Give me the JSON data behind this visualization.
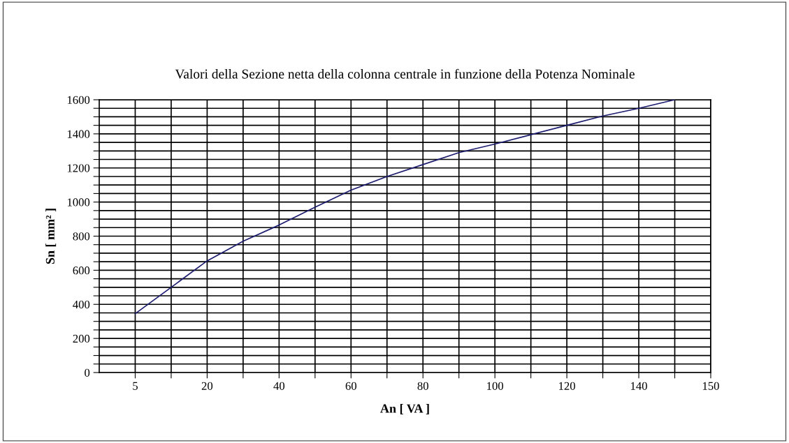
{
  "chart_data": {
    "type": "line",
    "title": "Valori della Sezione netta della colonna centrale in funzione della Potenza Nominale",
    "xlabel": "An [ VA ]",
    "ylabel": "Sn [ mm² ]",
    "categories": [
      "5",
      null,
      "20",
      null,
      "40",
      null,
      "60",
      null,
      "80",
      null,
      "100",
      null,
      "120",
      null,
      "140",
      null,
      "150"
    ],
    "series": [
      {
        "color": "#1c1c70",
        "values": [
          345,
          500,
          655,
          770,
          865,
          970,
          1070,
          1150,
          1220,
          1290,
          1340,
          1395,
          1450,
          1505,
          1550,
          1600,
          null
        ]
      }
    ],
    "ylim": [
      0,
      1600
    ],
    "yticks": [
      0,
      {
        "value": 50,
        "label": null
      },
      {
        "value": 100,
        "label": null
      },
      {
        "value": 150,
        "label": null
      },
      200,
      {
        "value": 250,
        "label": null
      },
      {
        "value": 300,
        "label": null
      },
      {
        "value": 350,
        "label": null
      },
      400,
      {
        "value": 450,
        "label": null
      },
      {
        "value": 500,
        "label": null
      },
      {
        "value": 550,
        "label": null
      },
      600,
      {
        "value": 650,
        "label": null
      },
      {
        "value": 700,
        "label": null
      },
      {
        "value": 750,
        "label": null
      },
      800,
      {
        "value": 850,
        "label": null
      },
      {
        "value": 900,
        "label": null
      },
      {
        "value": 950,
        "label": null
      },
      1000,
      {
        "value": 1050,
        "label": null
      },
      {
        "value": 1100,
        "label": null
      },
      {
        "value": 1150,
        "label": null
      },
      1200,
      {
        "value": 1250,
        "label": null
      },
      {
        "value": 1300,
        "label": null
      },
      {
        "value": 1350,
        "label": null
      },
      1400,
      {
        "value": 1450,
        "label": null
      },
      {
        "value": 1500,
        "label": null
      },
      {
        "value": 1550,
        "label": null
      },
      1600
    ],
    "grid": true,
    "marker": "none",
    "line_style": "solid"
  }
}
